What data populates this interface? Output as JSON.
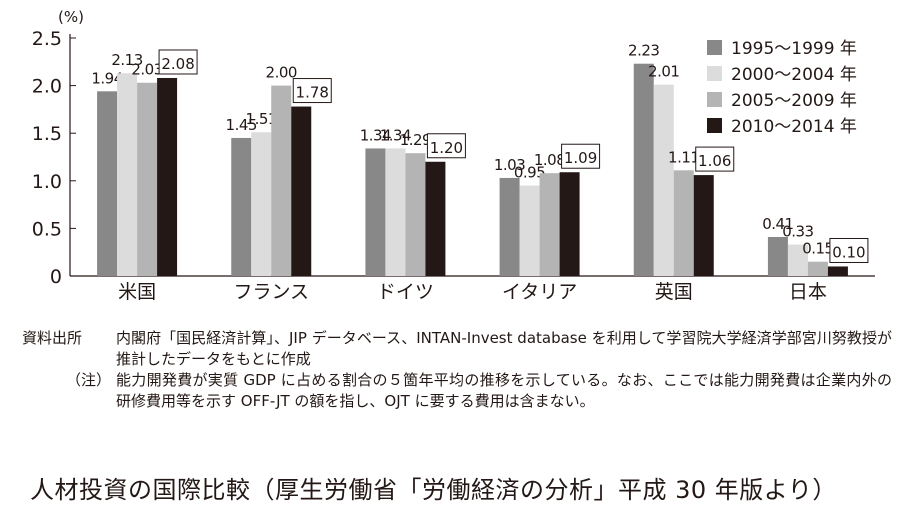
{
  "chart_data": {
    "type": "bar",
    "ylabel": "(%)",
    "ylim": [
      0,
      2.5
    ],
    "yticks": [
      "0",
      "0.5",
      "1.0",
      "1.5",
      "2.0",
      "2.5"
    ],
    "categories": [
      "米国",
      "フランス",
      "ドイツ",
      "イタリア",
      "英国",
      "日本"
    ],
    "series": [
      {
        "name": "1995～1999 年",
        "color": "#888888",
        "values": [
          1.94,
          1.45,
          1.34,
          1.03,
          2.23,
          0.41
        ],
        "labels": [
          "1.94",
          "1.45",
          "1.34",
          "1.03",
          "2.23",
          "0.41"
        ]
      },
      {
        "name": "2000～2004 年",
        "color": "#dcdcdc",
        "values": [
          2.13,
          1.51,
          1.34,
          0.95,
          2.01,
          0.33
        ],
        "labels": [
          "2.13",
          "1.51",
          "1.34",
          "0.95",
          "2.01",
          "0.33"
        ]
      },
      {
        "name": "2005～2009 年",
        "color": "#b4b4b4",
        "values": [
          2.03,
          2.0,
          1.29,
          1.08,
          1.11,
          0.15
        ],
        "labels": [
          "2.03",
          "2.00",
          "1.29",
          "1.08",
          "1.11",
          "0.15"
        ]
      },
      {
        "name": "2010～2014 年",
        "color": "#231815",
        "values": [
          2.08,
          1.78,
          1.2,
          1.09,
          1.06,
          0.1
        ],
        "labels": [
          "2.08",
          "1.78",
          "1.20",
          "1.09",
          "1.06",
          "0.10"
        ]
      }
    ],
    "legend_position": "top-right",
    "grid": false
  },
  "notes": {
    "source_label": "資料出所",
    "source_text": "内閣府「国民経済計算」、JIP データベース、INTAN-Invest database を利用して学習院大学経済学部宮川努教授が推計したデータをもとに作成",
    "note_label": "（注）",
    "note_text": "能力開発費が実質 GDP に占める割合の５箇年平均の推移を示している。なお、ここでは能力開発費は企業内外の研修費用等を示す OFF-JT の額を指し、OJT に要する費用は含まない。"
  },
  "caption": "人材投資の国際比較（厚生労働省「労働経済の分析」平成 30 年版より）"
}
